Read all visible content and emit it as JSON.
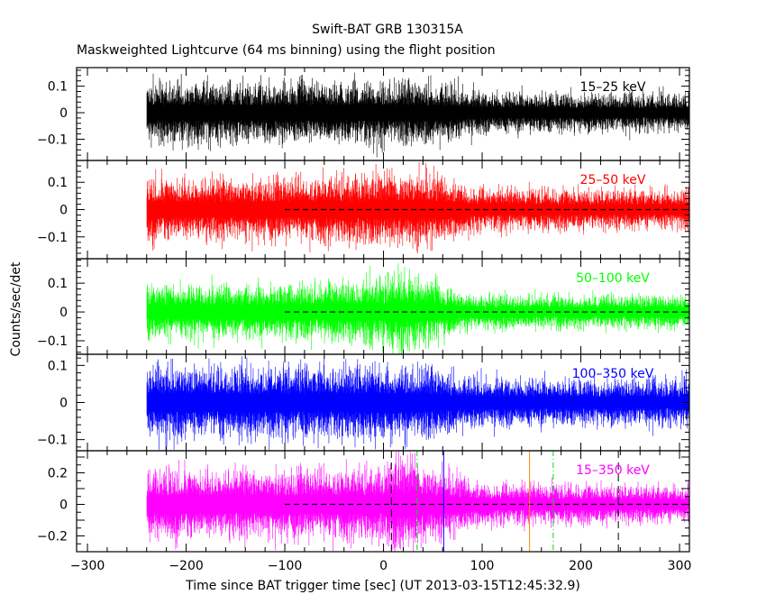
{
  "chart_data": {
    "type": "line",
    "title": "Swift-BAT GRB 130315A",
    "subtitle": "Maskweighted Lightcurve (64 ms binning) using the flight position",
    "xlabel": "Time since BAT trigger time [sec] (UT 2013-03-15T12:45:32.9)",
    "ylabel": "Counts/sec/det",
    "xlim": [
      -311,
      310
    ],
    "xticks": [
      "-300",
      "-200",
      "-100",
      "0",
      "100",
      "200",
      "300"
    ],
    "data_start": -240,
    "zero_line_start": -100,
    "grid": false,
    "panels": [
      {
        "name": "15-25 keV",
        "color": "#000000",
        "ylim": [
          -0.18,
          0.17
        ],
        "yticks": [
          {
            "v": 0.1,
            "label": "0.1"
          },
          {
            "v": 0,
            "label": "0"
          },
          {
            "v": -0.1,
            "label": "-0.1"
          }
        ],
        "envelope": {
          "t": [
            -240,
            -100,
            0,
            60,
            100,
            200,
            310
          ],
          "amp": [
            0.1,
            0.1,
            0.105,
            0.1,
            0.07,
            0.065,
            0.06
          ]
        },
        "zero_line": false
      },
      {
        "name": "25-50 keV",
        "color": "#ff0000",
        "ylim": [
          -0.18,
          0.18
        ],
        "yticks": [
          {
            "v": 0.1,
            "label": "0.1"
          },
          {
            "v": 0,
            "label": "0"
          },
          {
            "v": -0.1,
            "label": "-0.1"
          }
        ],
        "envelope": {
          "t": [
            -240,
            -100,
            0,
            30,
            70,
            100,
            200,
            310
          ],
          "amp": [
            0.1,
            0.1,
            0.115,
            0.12,
            0.095,
            0.07,
            0.065,
            0.065
          ]
        },
        "zero_line": true
      },
      {
        "name": "50-100 keV",
        "color": "#00ff00",
        "ylim": [
          -0.147,
          0.185
        ],
        "yticks": [
          {
            "v": 0.1,
            "label": "0.1"
          },
          {
            "v": 0,
            "label": "0"
          },
          {
            "v": -0.1,
            "label": "-0.1"
          }
        ],
        "envelope": {
          "t": [
            -240,
            -100,
            0,
            15,
            60,
            90,
            200,
            310
          ],
          "amp": [
            0.08,
            0.085,
            0.1,
            0.13,
            0.08,
            0.055,
            0.05,
            0.05
          ]
        },
        "zero_line": true
      },
      {
        "name": "100-350 keV",
        "color": "#0000ff",
        "ylim": [
          -0.13,
          0.13
        ],
        "yticks": [
          {
            "v": 0.1,
            "label": "0.1"
          },
          {
            "v": 0,
            "label": "0"
          },
          {
            "v": -0.1,
            "label": "-0.1"
          }
        ],
        "envelope": {
          "t": [
            -240,
            -100,
            0,
            40,
            90,
            200,
            310
          ],
          "amp": [
            0.085,
            0.085,
            0.09,
            0.085,
            0.06,
            0.055,
            0.055
          ]
        },
        "zero_line": false
      },
      {
        "name": "15-350 keV",
        "color": "#ff00ff",
        "ylim": [
          -0.3,
          0.34
        ],
        "yticks": [
          {
            "v": 0.2,
            "label": "0.2"
          },
          {
            "v": 0,
            "label": "0"
          },
          {
            "v": -0.2,
            "label": "-0.2"
          }
        ],
        "envelope": {
          "t": [
            -240,
            -100,
            0,
            10,
            30,
            60,
            100,
            200,
            310
          ],
          "amp": [
            0.19,
            0.19,
            0.2,
            0.27,
            0.25,
            0.18,
            0.12,
            0.11,
            0.1
          ]
        },
        "zero_line": true,
        "markers": [
          {
            "t": 8,
            "color": "#000000",
            "style": "dashed"
          },
          {
            "t": 34,
            "color": "#00dd00",
            "style": "dashdot"
          },
          {
            "t": 61,
            "color": "#0000ff",
            "style": "solid"
          },
          {
            "t": 148,
            "color": "#ff8800",
            "style": "solid"
          },
          {
            "t": 172,
            "color": "#00dd00",
            "style": "dashdot"
          },
          {
            "t": 238,
            "color": "#000000",
            "style": "dashed"
          }
        ]
      }
    ]
  }
}
